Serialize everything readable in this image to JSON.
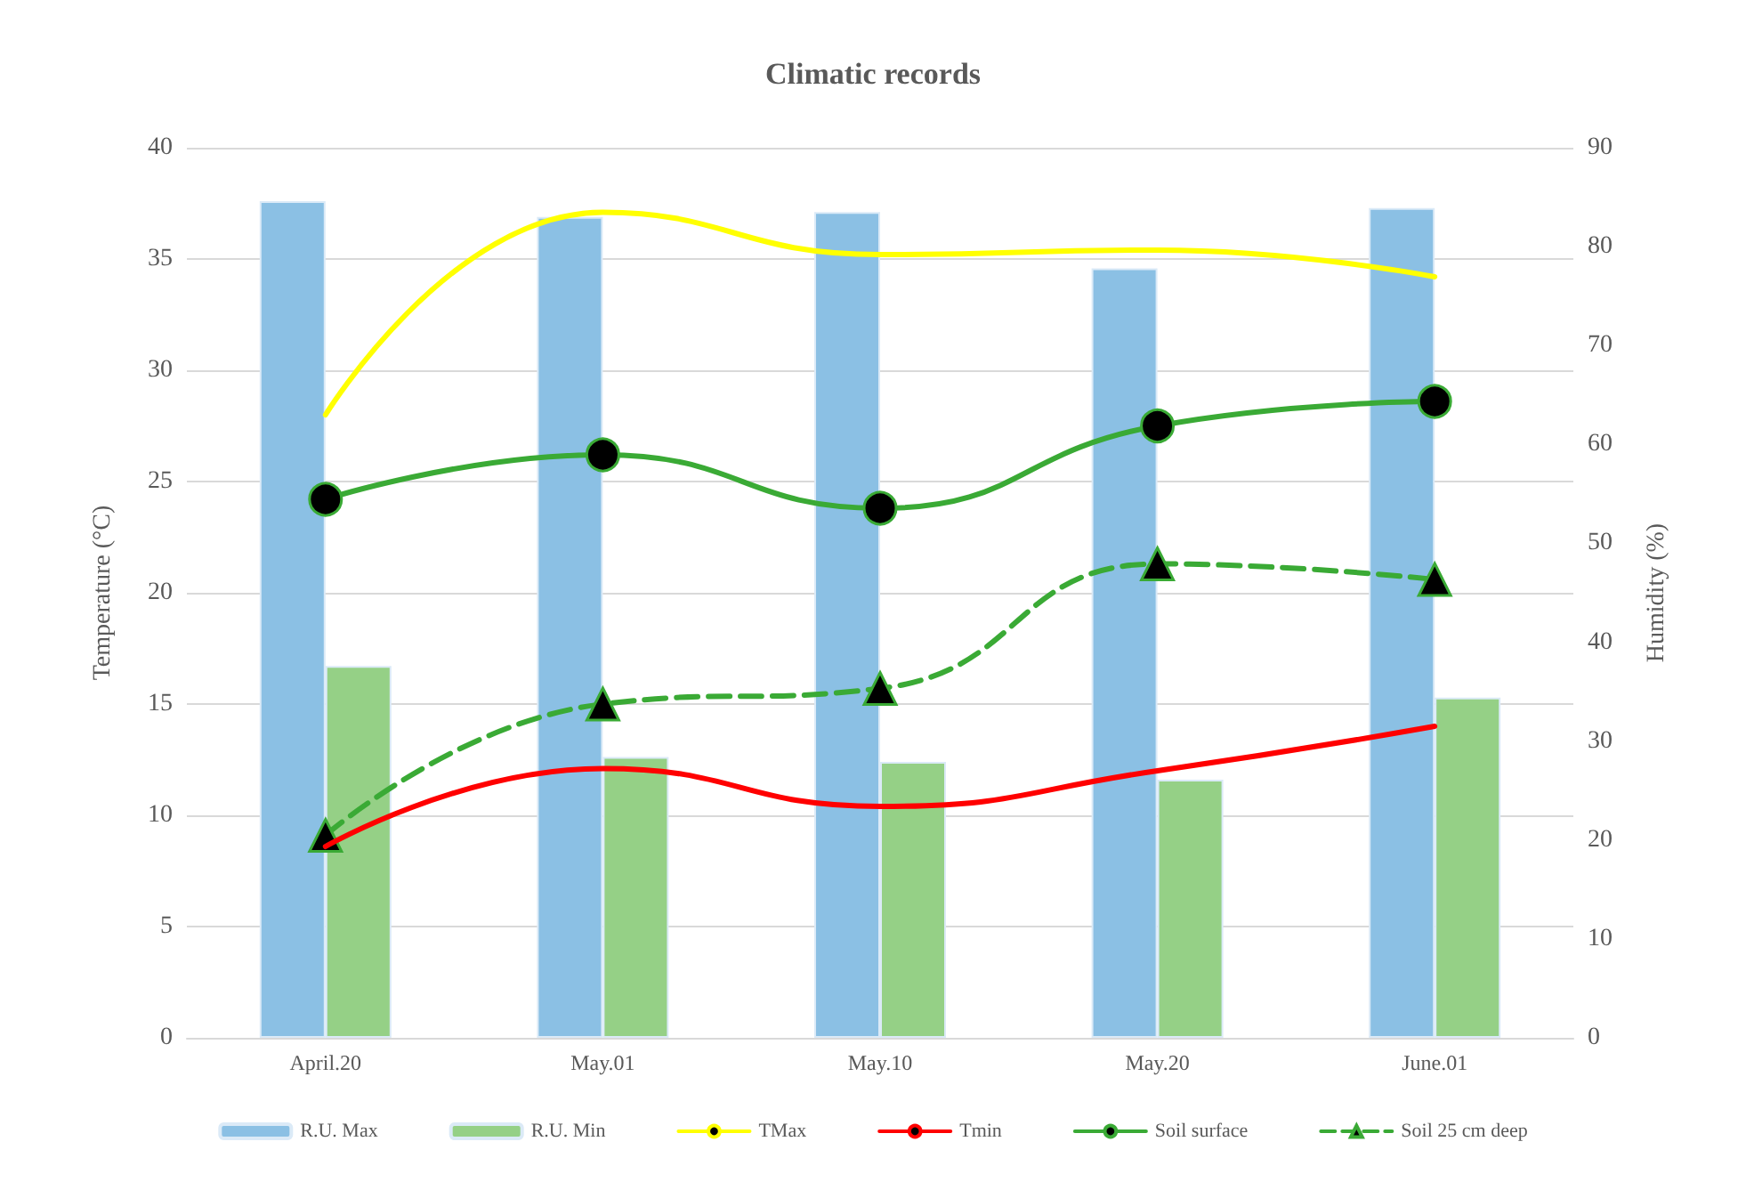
{
  "chart_data": {
    "type": "bar",
    "title": "Climatic records",
    "ylabel": "Temperature (°C)",
    "y2label": "Humidity (%)",
    "categories": [
      "April.20",
      "May.01",
      "May.10",
      "May.20",
      "June.01"
    ],
    "ylim": [
      0,
      40
    ],
    "yticks": [
      0,
      5,
      10,
      15,
      20,
      25,
      30,
      35,
      40
    ],
    "y2lim": [
      0,
      90
    ],
    "y2ticks": [
      0,
      10,
      20,
      30,
      40,
      50,
      60,
      70,
      80,
      90
    ],
    "grid": "y",
    "legend": "bottom",
    "series": [
      {
        "name": "R.U. Max",
        "axis": "y2",
        "color": "#8bc0e4",
        "values": [
          84.6,
          83.0,
          83.5,
          77.8,
          83.9
        ]
      },
      {
        "name": "R.U. Min",
        "axis": "y2",
        "color": "#95d086",
        "values": [
          37.6,
          28.4,
          27.9,
          26.1,
          34.4
        ]
      },
      {
        "name": "TMax",
        "type": "line",
        "color": "#ffff00",
        "marker": "none",
        "line_style": "solid",
        "values": [
          28.0,
          37.1,
          35.2,
          35.4,
          34.2
        ]
      },
      {
        "name": "Tmin",
        "type": "line",
        "color": "#ff0000",
        "marker": "none",
        "line_style": "solid",
        "values": [
          8.6,
          12.1,
          10.4,
          12.0,
          14.0
        ]
      },
      {
        "name": "Soil surface",
        "type": "line",
        "color": "#3aaa35",
        "marker": "circle",
        "line_style": "solid",
        "values": [
          24.2,
          26.2,
          23.8,
          27.5,
          28.6
        ]
      },
      {
        "name": "Soil 25 cm deep",
        "type": "line",
        "color": "#3aaa35",
        "marker": "triangle",
        "line_style": "dashed",
        "values": [
          9.1,
          15.0,
          15.7,
          21.3,
          20.6
        ]
      }
    ]
  }
}
